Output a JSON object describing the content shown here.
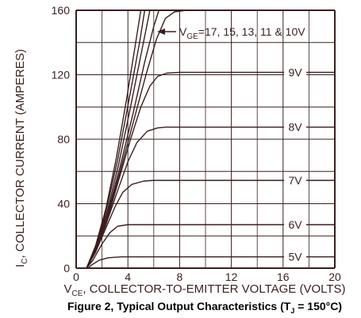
{
  "chart_data": {
    "type": "line",
    "title": "Figure 2, Typical Output Characteristics (T",
    "title_sub": "J",
    "title_suffix": " = 150°C)",
    "xlabel": "V",
    "xlabel_sub": "CE",
    "xlabel_suffix": ", COLLECTOR-TO-EMITTER VOLTAGE (VOLTS)",
    "ylabel": "I",
    "ylabel_sub": "C",
    "ylabel_suffix": ", COLLECTOR CURRENT (AMPERES)",
    "xlim": [
      0,
      20
    ],
    "ylim": [
      0,
      160
    ],
    "x_ticks": [
      "0",
      "4",
      "8",
      "12",
      "16",
      "20"
    ],
    "x_tick_values": [
      0,
      4,
      8,
      12,
      16,
      20
    ],
    "y_ticks": [
      "0",
      "40",
      "80",
      "120",
      "160"
    ],
    "y_tick_values": [
      0,
      40,
      80,
      120,
      160
    ],
    "grid": true,
    "colors": {
      "axis": "#3a1e1e",
      "curve": "#3a1e1e",
      "grid": "#3a1e1e",
      "background": "#ffffff"
    },
    "annotations": [
      {
        "text": "V",
        "sub": "GE",
        "suffix": "=17, 15, 13, 11 & 10V",
        "x": 7.0,
        "y": 147
      }
    ],
    "series": [
      {
        "name": "5V",
        "label": "5V",
        "points": [
          [
            0,
            0
          ],
          [
            0.9,
            0
          ],
          [
            1.2,
            2
          ],
          [
            1.8,
            5
          ],
          [
            2.5,
            6.5
          ],
          [
            3.5,
            7
          ],
          [
            20,
            7
          ]
        ]
      },
      {
        "name": "6V",
        "label": "6V",
        "points": [
          [
            0,
            0
          ],
          [
            0.8,
            0
          ],
          [
            1.3,
            5
          ],
          [
            2.0,
            15
          ],
          [
            2.6,
            22
          ],
          [
            3.2,
            26
          ],
          [
            4,
            27
          ],
          [
            20,
            27
          ]
        ]
      },
      {
        "name": "7V",
        "label": "7V",
        "points": [
          [
            0,
            0
          ],
          [
            0.8,
            0
          ],
          [
            1.5,
            10
          ],
          [
            2.3,
            25
          ],
          [
            3.0,
            38
          ],
          [
            3.6,
            47
          ],
          [
            4.3,
            52
          ],
          [
            5.2,
            54
          ],
          [
            6,
            54.5
          ],
          [
            20,
            54.5
          ]
        ]
      },
      {
        "name": "8V",
        "label": "8V",
        "points": [
          [
            0,
            0
          ],
          [
            0.8,
            0
          ],
          [
            1.5,
            10
          ],
          [
            2.3,
            27
          ],
          [
            3.2,
            48
          ],
          [
            4.0,
            66
          ],
          [
            4.7,
            78
          ],
          [
            5.5,
            85
          ],
          [
            6.3,
            87
          ],
          [
            7,
            87.5
          ],
          [
            20,
            87.5
          ]
        ]
      },
      {
        "name": "9V",
        "label": "9V",
        "points": [
          [
            0,
            0
          ],
          [
            0.8,
            0
          ],
          [
            1.5,
            11
          ],
          [
            2.4,
            30
          ],
          [
            3.3,
            55
          ],
          [
            4.2,
            80
          ],
          [
            5.0,
            100
          ],
          [
            5.7,
            113
          ],
          [
            6.3,
            119
          ],
          [
            7,
            121
          ],
          [
            8,
            121.5
          ],
          [
            20,
            121.5
          ]
        ]
      },
      {
        "name": "10V",
        "points": [
          [
            0,
            0
          ],
          [
            0.8,
            0
          ],
          [
            1.5,
            12
          ],
          [
            2.4,
            32
          ],
          [
            3.4,
            60
          ],
          [
            4.4,
            90
          ],
          [
            5.4,
            120
          ],
          [
            6.2,
            142
          ],
          [
            6.9,
            155
          ],
          [
            7.6,
            159
          ],
          [
            8.5,
            160
          ]
        ]
      },
      {
        "name": "11V",
        "points": [
          [
            0,
            0
          ],
          [
            0.8,
            0
          ],
          [
            1.5,
            12
          ],
          [
            2.4,
            33
          ],
          [
            3.4,
            63
          ],
          [
            4.4,
            96
          ],
          [
            5.3,
            128
          ],
          [
            6.0,
            150
          ],
          [
            6.4,
            160
          ]
        ]
      },
      {
        "name": "13V",
        "points": [
          [
            0,
            0
          ],
          [
            0.8,
            0
          ],
          [
            1.5,
            13
          ],
          [
            2.4,
            35
          ],
          [
            3.3,
            65
          ],
          [
            4.2,
            100
          ],
          [
            5.0,
            132
          ],
          [
            5.7,
            160
          ]
        ]
      },
      {
        "name": "15V",
        "points": [
          [
            0,
            0
          ],
          [
            0.8,
            0
          ],
          [
            1.5,
            13
          ],
          [
            2.3,
            35
          ],
          [
            3.2,
            67
          ],
          [
            4.1,
            105
          ],
          [
            4.9,
            140
          ],
          [
            5.3,
            160
          ]
        ]
      },
      {
        "name": "17V",
        "points": [
          [
            0,
            0
          ],
          [
            0.8,
            0
          ],
          [
            1.5,
            14
          ],
          [
            2.3,
            37
          ],
          [
            3.1,
            68
          ],
          [
            3.9,
            105
          ],
          [
            4.6,
            140
          ],
          [
            5.0,
            160
          ]
        ]
      }
    ]
  }
}
